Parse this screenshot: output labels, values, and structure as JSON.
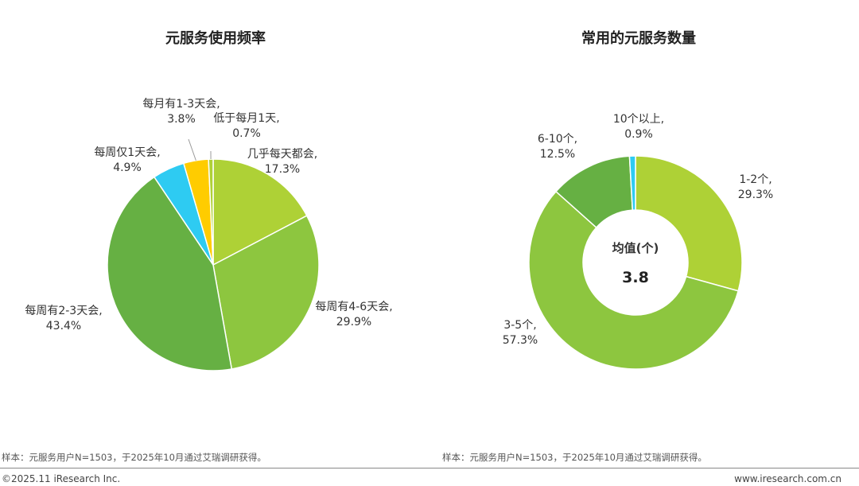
{
  "chart_data": [
    {
      "type": "pie",
      "title": "元服务使用频率",
      "series": [
        {
          "name": "几乎每天都会",
          "value": 17.3,
          "label_line1": "几乎每天都会,",
          "label_line2": "17.3%",
          "color": "#aed136"
        },
        {
          "name": "每周有4-6天会",
          "value": 29.9,
          "label_line1": "每周有4-6天会,",
          "label_line2": "29.9%",
          "color": "#8dc63f"
        },
        {
          "name": "每周有2-3天会",
          "value": 43.4,
          "label_line1": "每周有2-3天会,",
          "label_line2": "43.4%",
          "color": "#66b043"
        },
        {
          "name": "每周仅1天会",
          "value": 4.9,
          "label_line1": "每周仅1天会,",
          "label_line2": "4.9%",
          "color": "#2ecbf2"
        },
        {
          "name": "每月有1-3天会",
          "value": 3.8,
          "label_line1": "每月有1-3天会,",
          "label_line2": "3.8%",
          "color": "#ffcc00"
        },
        {
          "name": "低于每月1天",
          "value": 0.7,
          "label_line1": "低于每月1天,",
          "label_line2": "0.7%",
          "color": "#aed136"
        }
      ],
      "footnote": "样本：元服务用户N=1503，于2025年10月通过艾瑞调研获得。"
    },
    {
      "type": "donut",
      "title": "常用的元服务数量",
      "center_caption": "均值(个)",
      "center_value": "3.8",
      "series": [
        {
          "name": "1-2个",
          "value": 29.3,
          "label_line1": "1-2个,",
          "label_line2": "29.3%",
          "color": "#aed136"
        },
        {
          "name": "3-5个",
          "value": 57.3,
          "label_line1": "3-5个,",
          "label_line2": "57.3%",
          "color": "#8dc63f"
        },
        {
          "name": "6-10个",
          "value": 12.5,
          "label_line1": "6-10个,",
          "label_line2": "12.5%",
          "color": "#66b043"
        },
        {
          "name": "10个以上",
          "value": 0.9,
          "label_line1": "10个以上,",
          "label_line2": "0.9%",
          "color": "#2ecbf2"
        }
      ],
      "footnote": "样本：元服务用户N=1503，于2025年10月通过艾瑞调研获得。"
    }
  ],
  "footer": {
    "copyright": "©2025.11 iResearch Inc.",
    "website": "www.iresearch.com.cn"
  }
}
